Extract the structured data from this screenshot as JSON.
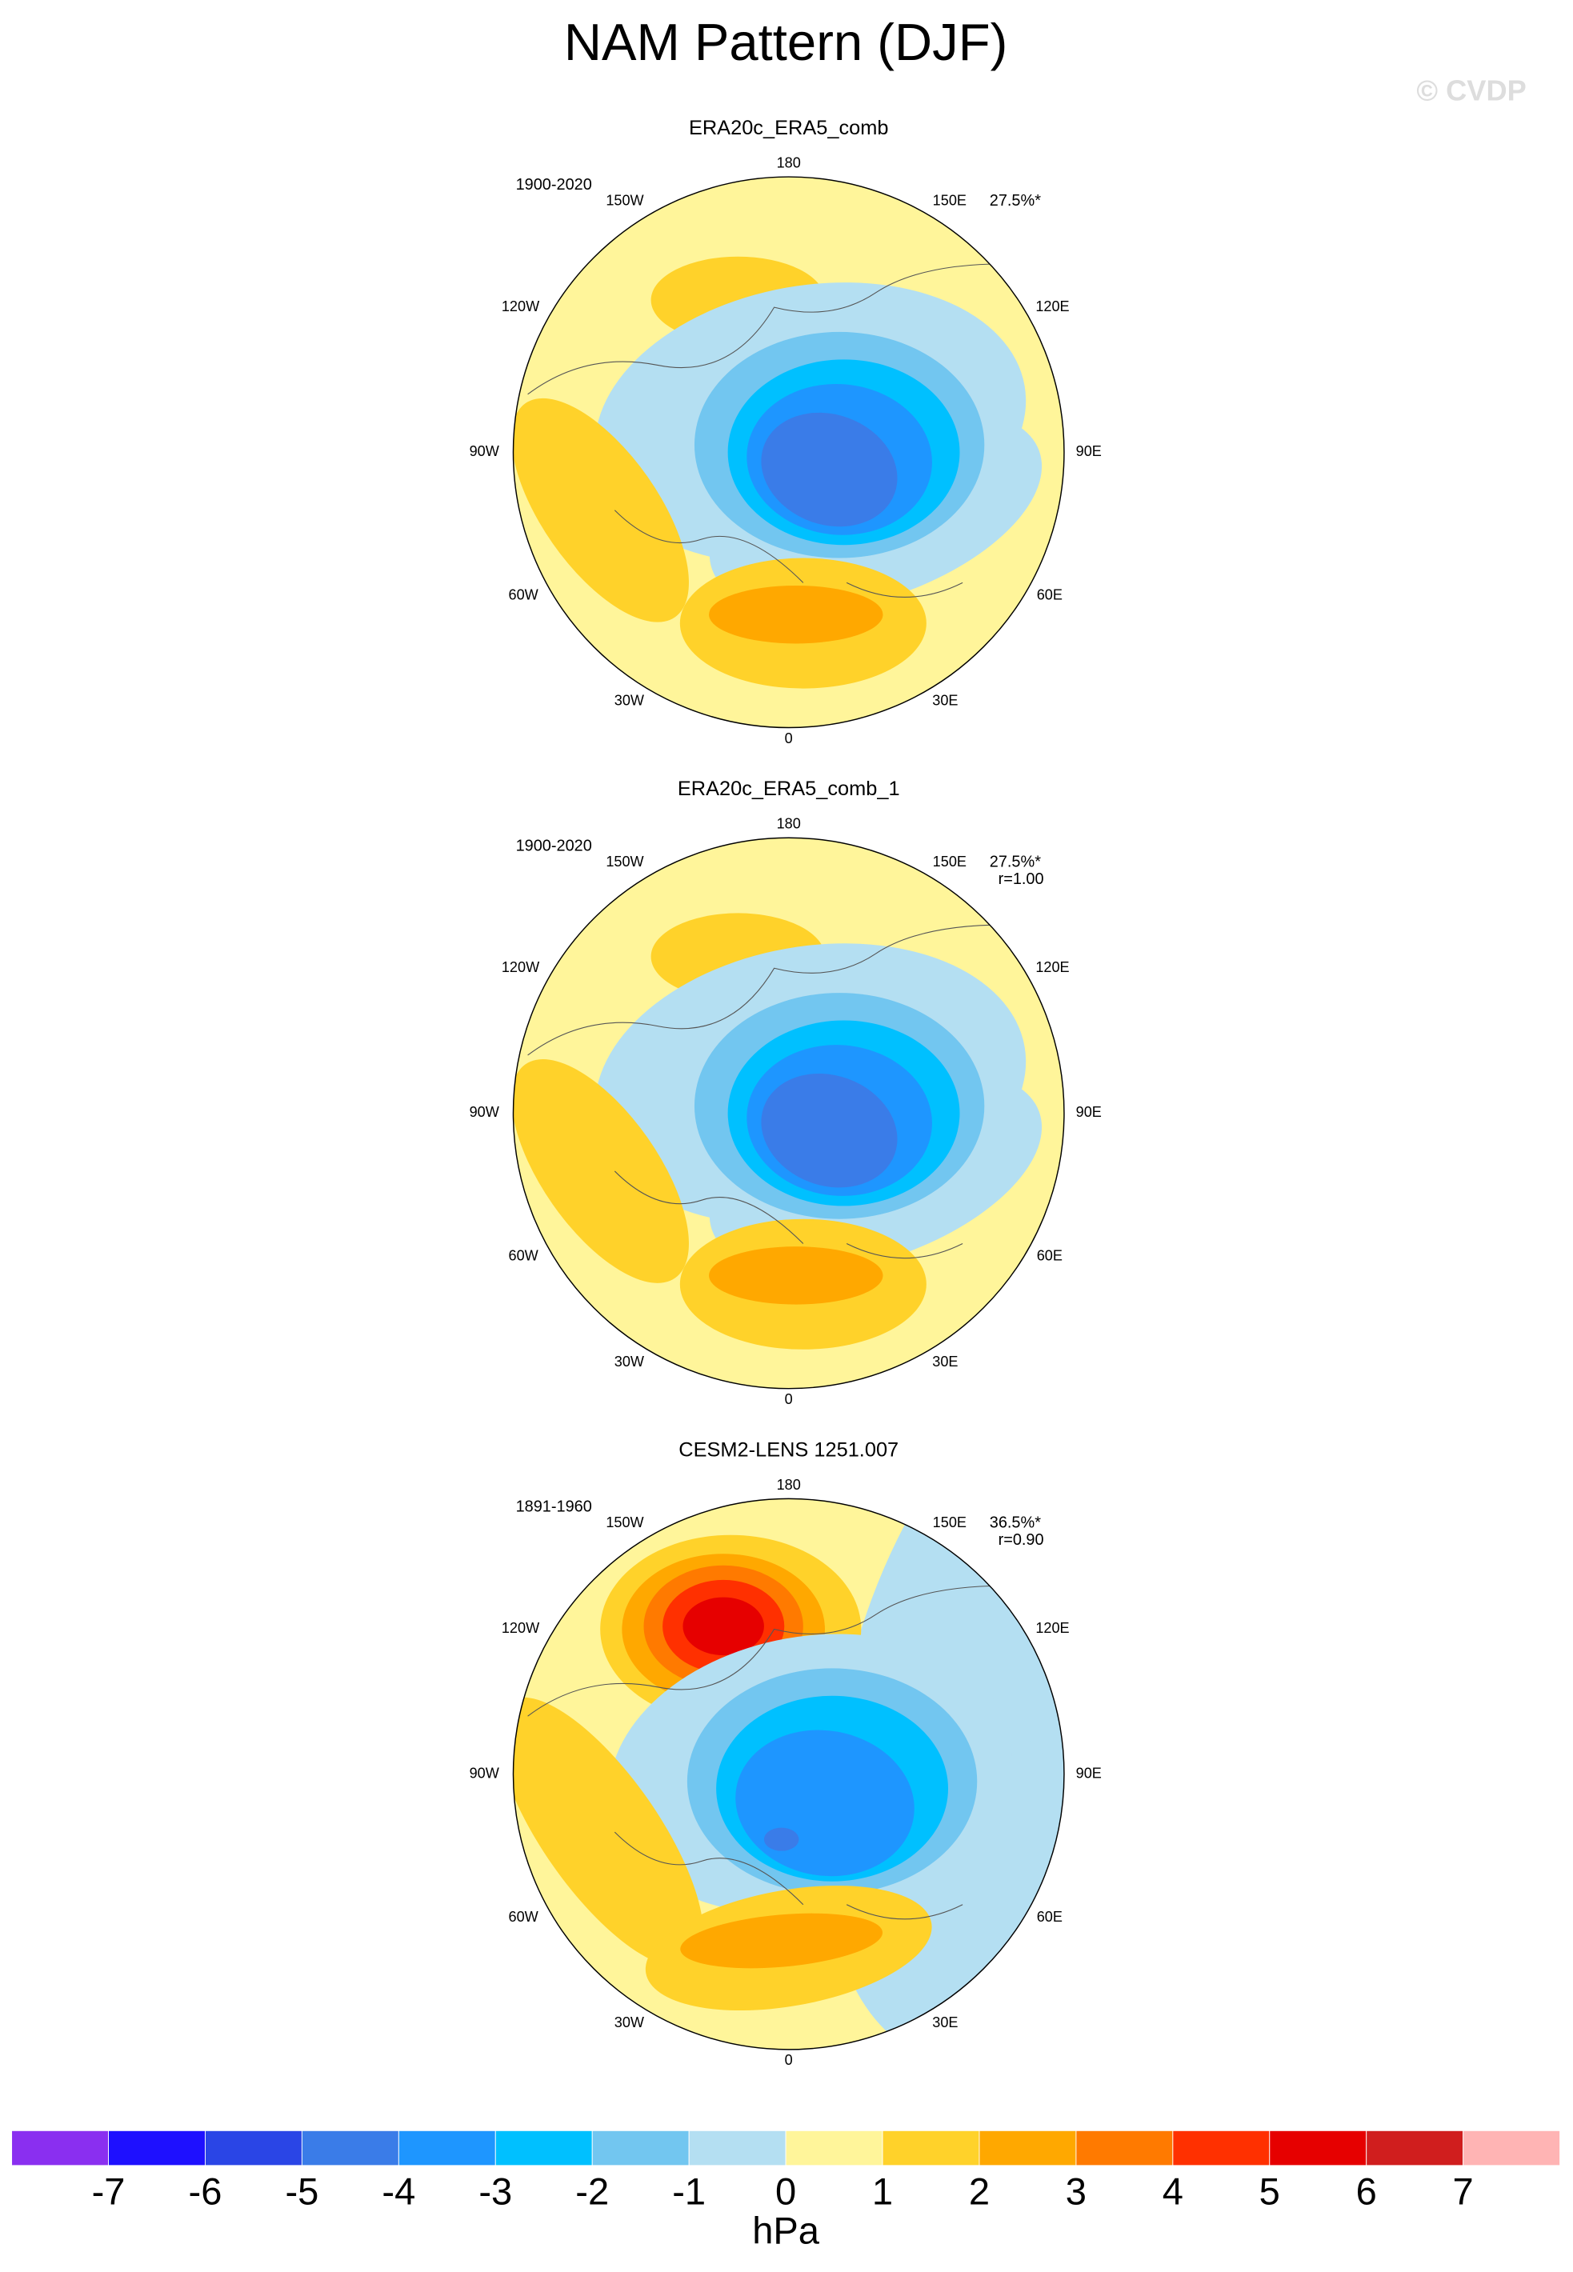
{
  "title": "NAM Pattern (DJF)",
  "watermark": "© CVDP",
  "longitude_labels": [
    "180",
    "150E",
    "120E",
    "90E",
    "60E",
    "30E",
    "0",
    "30W",
    "60W",
    "90W",
    "120W",
    "150W"
  ],
  "panels": [
    {
      "title": "ERA20c_ERA5_comb",
      "period": "1900-2020",
      "variance": "27.5%*"
    },
    {
      "title": "ERA20c_ERA5_comb_1",
      "period": "1900-2020",
      "variance": "27.5%*",
      "correlation": "r=1.00"
    },
    {
      "title": "CESM2-LENS 1251.007",
      "period": "1891-1960",
      "variance": "36.5%*",
      "correlation": "r=0.90"
    }
  ],
  "colorbar": {
    "levels": [
      -7,
      -6,
      -5,
      -4,
      -3,
      -2,
      -1,
      0,
      1,
      2,
      3,
      4,
      5,
      6,
      7
    ],
    "colors": [
      "#8a2ff0",
      "#1e10ff",
      "#2a45e6",
      "#3a7ce8",
      "#1e96ff",
      "#00c0ff",
      "#72c6f0",
      "#b4dff2",
      "#fff59a",
      "#ffd22a",
      "#ffa800",
      "#ff7a00",
      "#ff3000",
      "#e60000",
      "#d01e1e",
      "#ffb4b4"
    ],
    "units": "hPa"
  }
}
